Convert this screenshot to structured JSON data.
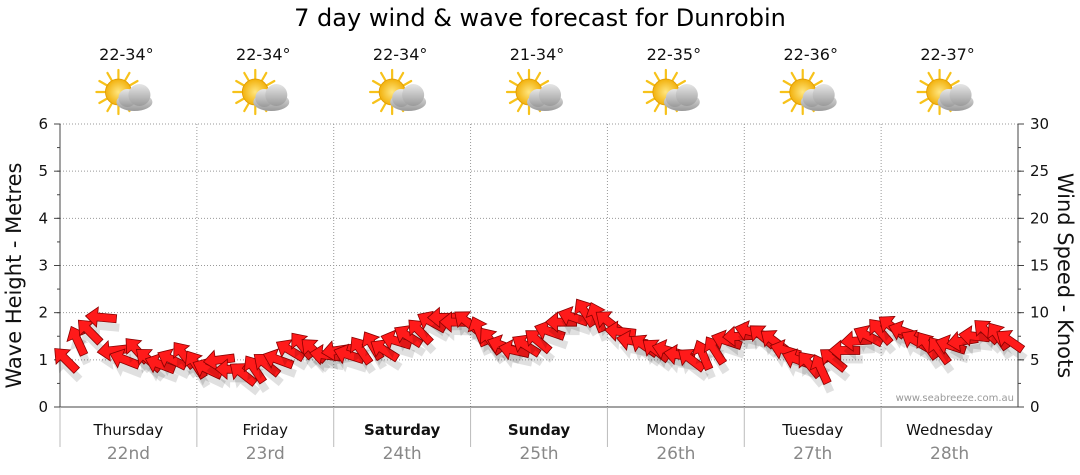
{
  "title": "7 day wind & wave forecast for Dunrobin",
  "watermark": "www.seabreeze.com.au",
  "colors": {
    "arrow": "#ff1a1a",
    "arrow_edge": "#8a0000",
    "grid": "#999999",
    "sun": "#f7c21a",
    "cloud": "#b5b5b5"
  },
  "days": [
    {
      "name": "Thursday",
      "date": "22nd",
      "temp": "22-34°",
      "icon": "partly-cloudy-icon",
      "bold": false
    },
    {
      "name": "Friday",
      "date": "23rd",
      "temp": "22-34°",
      "icon": "partly-cloudy-icon",
      "bold": false
    },
    {
      "name": "Saturday",
      "date": "24th",
      "temp": "22-34°",
      "icon": "partly-cloudy-icon",
      "bold": true
    },
    {
      "name": "Sunday",
      "date": "25th",
      "temp": "21-34°",
      "icon": "partly-cloudy-icon",
      "bold": true
    },
    {
      "name": "Monday",
      "date": "26th",
      "temp": "22-35°",
      "icon": "partly-cloudy-icon",
      "bold": false
    },
    {
      "name": "Tuesday",
      "date": "27th",
      "temp": "22-36°",
      "icon": "partly-cloudy-icon",
      "bold": false
    },
    {
      "name": "Wednesday",
      "date": "28th",
      "temp": "22-37°",
      "icon": "partly-cloudy-icon",
      "bold": false
    }
  ],
  "chart_data": {
    "type": "line",
    "left_axis": {
      "label": "Wave Height - Metres",
      "min": 0,
      "max": 6,
      "ticks": [
        "0",
        "1",
        "2",
        "3",
        "4",
        "5",
        "6"
      ]
    },
    "right_axis": {
      "label": "Wind Speed - Knots",
      "min": 0,
      "max": 30,
      "ticks": [
        "0",
        "5",
        "10",
        "15",
        "20",
        "25",
        "30"
      ]
    },
    "grid": true,
    "series": [
      {
        "values_knots": [
          5,
          7,
          8,
          9.5,
          6,
          5,
          6,
          5,
          4.5,
          5,
          5.5,
          4.5,
          4,
          5,
          4,
          3.5,
          4,
          4.5,
          5,
          6,
          6.5,
          6,
          5.5,
          6,
          5.5,
          6,
          6.5,
          6,
          7,
          7.5,
          8,
          9,
          9.5,
          9,
          9,
          8,
          7,
          6.5,
          6,
          6.5,
          7,
          8,
          9,
          9.5,
          10,
          9.5,
          9,
          8,
          7,
          6.5,
          6,
          6,
          5.5,
          5,
          5.5,
          6,
          7,
          7.5,
          8,
          7.5,
          7,
          6,
          5,
          4.5,
          4,
          5,
          6,
          7,
          7.5,
          8,
          8.5,
          8,
          7,
          6.5,
          6,
          6.5,
          7,
          7.5,
          8,
          7.5,
          7
        ]
      }
    ]
  }
}
